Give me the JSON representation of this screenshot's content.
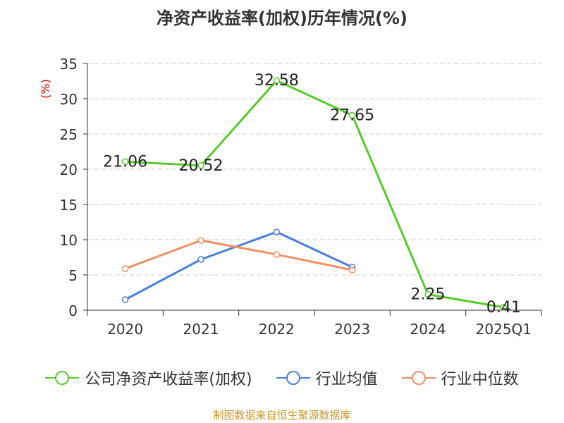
{
  "title": "净资产收益率(加权)历年情况(%)",
  "source": "制图数据来自恒生聚源数据库",
  "colors": {
    "company": "#5ac92b",
    "avg": "#4a7fdc",
    "median": "#f39063",
    "unit": "#cc0000"
  },
  "chart_data": {
    "type": "line",
    "categories": [
      "2020",
      "2021",
      "2022",
      "2023",
      "2024",
      "2025Q1"
    ],
    "ylabel": "(%)",
    "ylim": [
      0,
      35
    ],
    "yticks": [
      0,
      5,
      10,
      15,
      20,
      25,
      30,
      35
    ],
    "grid": true,
    "legend_position": "bottom",
    "series": [
      {
        "name": "公司净资产收益率(加权)",
        "key": "company",
        "values": [
          21.06,
          20.52,
          32.58,
          27.65,
          2.25,
          0.41
        ],
        "labels": [
          "21.06",
          "20.52",
          "32.58",
          "27.65",
          "2.25",
          "0.41"
        ]
      },
      {
        "name": "行业均值",
        "key": "avg",
        "values": [
          1.5,
          7.2,
          11.1,
          6.1,
          null,
          null
        ]
      },
      {
        "name": "行业中位数",
        "key": "median",
        "values": [
          5.9,
          9.9,
          7.9,
          5.7,
          null,
          null
        ]
      }
    ]
  }
}
